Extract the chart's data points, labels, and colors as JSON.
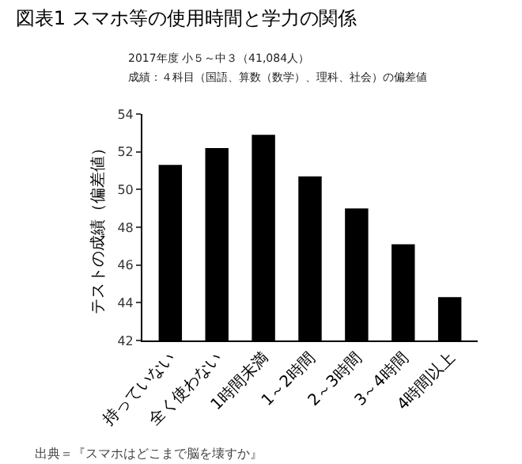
{
  "chart_data": {
    "type": "bar",
    "title": "図表1 スマホ等の使用時間と学力の関係",
    "subtitle": "2017年度 小５～中３（41,084人）",
    "ylabel": "テストの成績（偏差値）",
    "categories": [
      "持っていない",
      "全く使わない",
      "1時間未満",
      "1～2時間",
      "2～3時間",
      "3～4時間",
      "4時間以上"
    ],
    "values": [
      51.3,
      52.2,
      52.9,
      50.7,
      49.0,
      47.1,
      44.3
    ],
    "color": "#000000",
    "ylim": [
      42,
      54
    ],
    "yticks": [
      42,
      44,
      46,
      48,
      50,
      52,
      54
    ],
    "grid": false,
    "annotations": [
      "成績：４科目（国語、算数（数学）、理科、社会）の偏差値",
      "出典＝『スマホはどこまで脳を壊すか』"
    ]
  }
}
